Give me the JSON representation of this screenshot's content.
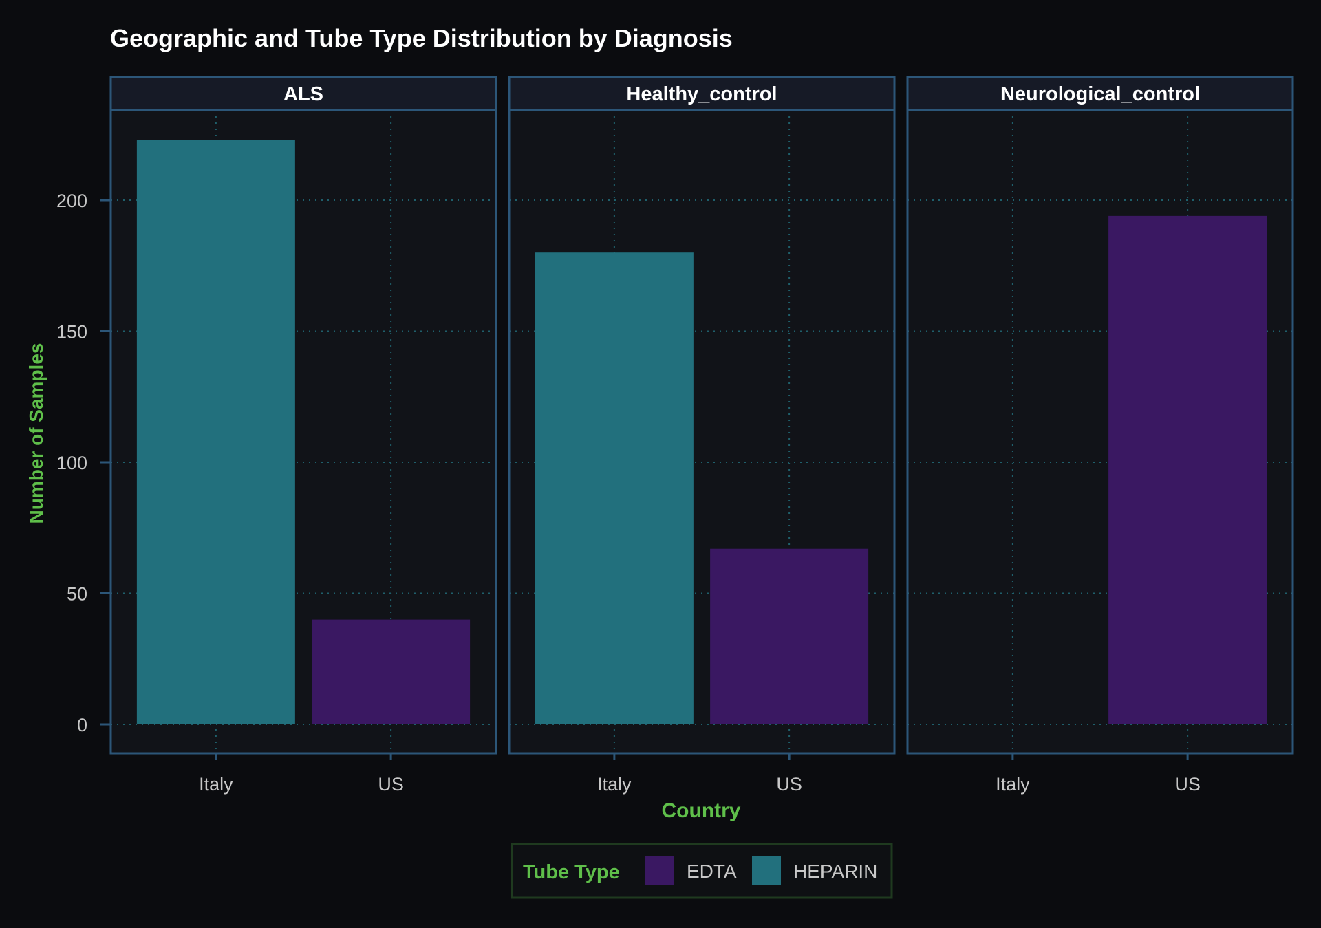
{
  "chart_data": {
    "type": "bar",
    "title": "Geographic and Tube Type Distribution by Diagnosis",
    "xlabel": "Country",
    "ylabel": "Number of Samples",
    "categories": [
      "Italy",
      "US"
    ],
    "ylim": [
      0,
      235
    ],
    "yticks": [
      0,
      50,
      100,
      150,
      200
    ],
    "grid": true,
    "legend": {
      "title": "Tube Type",
      "placement": "bottom-center",
      "entries": [
        {
          "name": "EDTA",
          "color": "#3a1862"
        },
        {
          "name": "HEPARIN",
          "color": "#22707d"
        }
      ]
    },
    "facets": [
      {
        "label": "ALS",
        "bars": [
          {
            "category": "Italy",
            "value": 223,
            "tube_type": "HEPARIN"
          },
          {
            "category": "US",
            "value": 40,
            "tube_type": "EDTA"
          }
        ]
      },
      {
        "label": "Healthy_control",
        "bars": [
          {
            "category": "Italy",
            "value": 180,
            "tube_type": "HEPARIN"
          },
          {
            "category": "US",
            "value": 67,
            "tube_type": "EDTA"
          }
        ]
      },
      {
        "label": "Neurological_control",
        "bars": [
          {
            "category": "US",
            "value": 194,
            "tube_type": "EDTA"
          }
        ]
      }
    ]
  },
  "colors": {
    "background": "#0b0c0f",
    "panel": "#111318",
    "strip": "#161a26",
    "panel_border": "#2c5678",
    "grid": "#1f5f6b",
    "title_text": "#ffffff",
    "axis_label": "#5fbf4a",
    "tick_text": "#c8c8c8",
    "legend_border": "#1f3a1f"
  }
}
